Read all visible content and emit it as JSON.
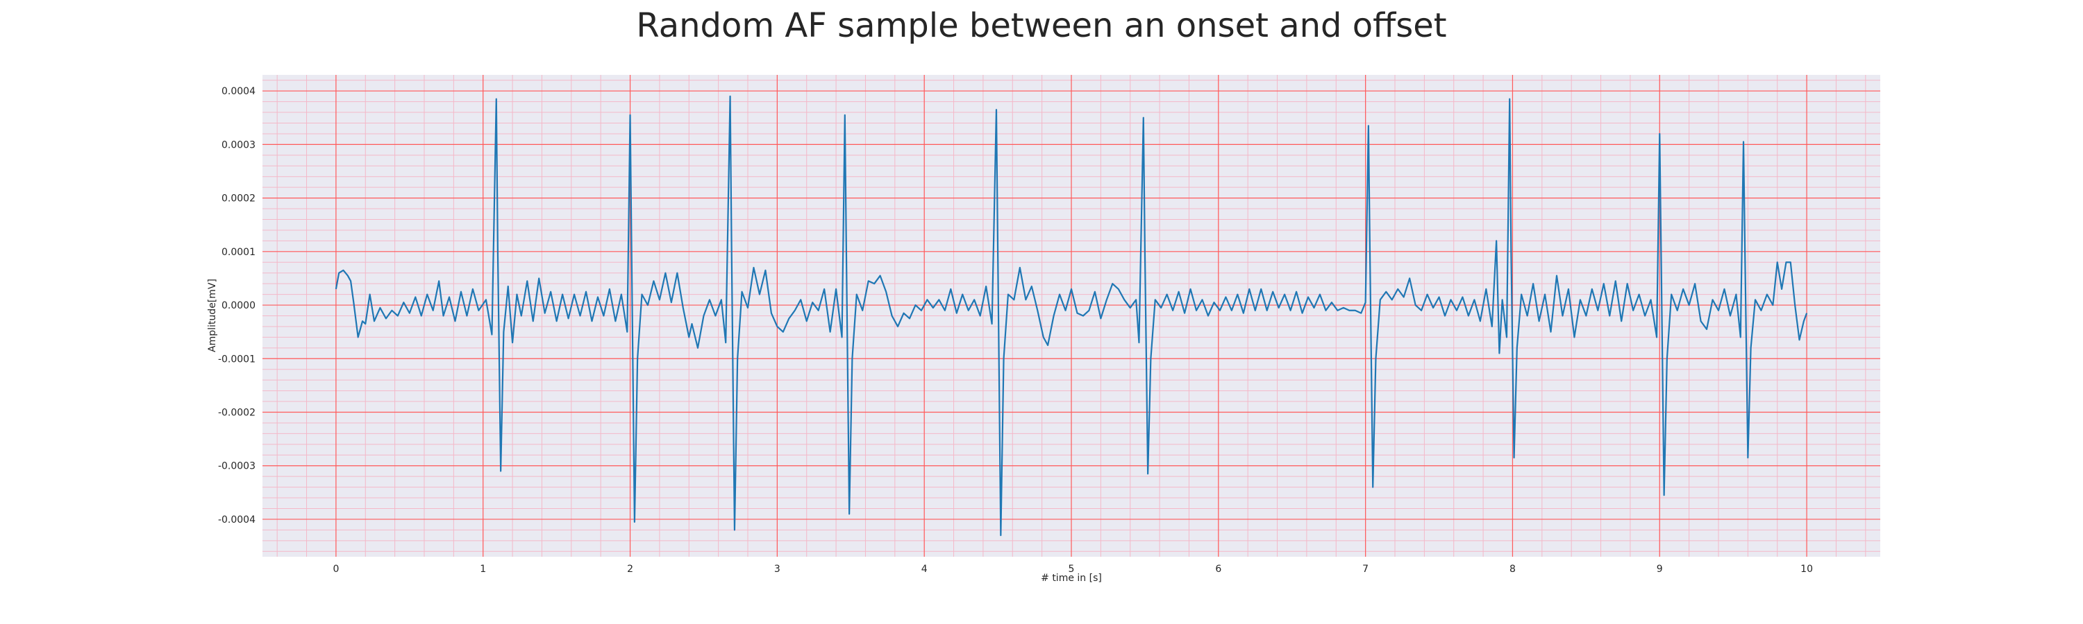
{
  "chart_data": {
    "type": "line",
    "title": "Random AF sample between an onset and offset",
    "xlabel": "# time in [s]",
    "ylabel": "Amplitude[mV]",
    "xlim": [
      -0.5,
      10.5
    ],
    "ylim": [
      -0.00047,
      0.00043
    ],
    "x_ticks": [
      0,
      1,
      2,
      3,
      4,
      5,
      6,
      7,
      8,
      9,
      10
    ],
    "x_tick_labels": [
      "0",
      "1",
      "2",
      "3",
      "4",
      "5",
      "6",
      "7",
      "8",
      "9",
      "10"
    ],
    "y_ticks": [
      -0.0004,
      -0.0003,
      -0.0002,
      -0.0001,
      0,
      0.0001,
      0.0002,
      0.0003,
      0.0004
    ],
    "y_tick_labels": [
      "-0.0004",
      "-0.0003",
      "-0.0002",
      "-0.0001",
      "0.0000",
      "0.0001",
      "0.0002",
      "0.0003",
      "0.0004"
    ],
    "grid": {
      "major": true,
      "minor": true
    },
    "colors": {
      "plot_background": "#eaeaf2",
      "major_grid": "#ff5b5b",
      "minor_grid": "#f4b8c8",
      "line": "#1f77b4"
    },
    "series": [
      {
        "points": [
          [
            0.0,
            3e-05
          ],
          [
            0.02,
            6e-05
          ],
          [
            0.05,
            6.5e-05
          ],
          [
            0.08,
            5.5e-05
          ],
          [
            0.1,
            4.5e-05
          ],
          [
            0.12,
            5e-06
          ],
          [
            0.15,
            -6e-05
          ],
          [
            0.18,
            -3e-05
          ],
          [
            0.2,
            -3.5e-05
          ],
          [
            0.23,
            2e-05
          ],
          [
            0.26,
            -3e-05
          ],
          [
            0.3,
            -5e-06
          ],
          [
            0.34,
            -2.5e-05
          ],
          [
            0.38,
            -1e-05
          ],
          [
            0.42,
            -2e-05
          ],
          [
            0.46,
            5e-06
          ],
          [
            0.5,
            -1.5e-05
          ],
          [
            0.54,
            1.5e-05
          ],
          [
            0.58,
            -2e-05
          ],
          [
            0.62,
            2e-05
          ],
          [
            0.66,
            -1e-05
          ],
          [
            0.7,
            4.5e-05
          ],
          [
            0.73,
            -2e-05
          ],
          [
            0.77,
            1.5e-05
          ],
          [
            0.81,
            -3e-05
          ],
          [
            0.85,
            2.5e-05
          ],
          [
            0.89,
            -2e-05
          ],
          [
            0.93,
            3e-05
          ],
          [
            0.97,
            -1e-05
          ],
          [
            1.02,
            1e-05
          ],
          [
            1.06,
            -5.5e-05
          ],
          [
            1.09,
            0.000385
          ],
          [
            1.1,
            0.0001
          ],
          [
            1.12,
            -0.00031
          ],
          [
            1.14,
            -5e-05
          ],
          [
            1.17,
            3.5e-05
          ],
          [
            1.2,
            -7e-05
          ],
          [
            1.23,
            2e-05
          ],
          [
            1.26,
            -2e-05
          ],
          [
            1.3,
            4.5e-05
          ],
          [
            1.34,
            -3e-05
          ],
          [
            1.38,
            5e-05
          ],
          [
            1.42,
            -1.5e-05
          ],
          [
            1.46,
            2.5e-05
          ],
          [
            1.5,
            -3e-05
          ],
          [
            1.54,
            2e-05
          ],
          [
            1.58,
            -2.5e-05
          ],
          [
            1.62,
            2e-05
          ],
          [
            1.66,
            -2e-05
          ],
          [
            1.7,
            2.5e-05
          ],
          [
            1.74,
            -3e-05
          ],
          [
            1.78,
            1.5e-05
          ],
          [
            1.82,
            -2e-05
          ],
          [
            1.86,
            3e-05
          ],
          [
            1.9,
            -3e-05
          ],
          [
            1.94,
            2e-05
          ],
          [
            1.98,
            -5e-05
          ],
          [
            2.0,
            0.000355
          ],
          [
            2.01,
            0.0001
          ],
          [
            2.03,
            -0.000405
          ],
          [
            2.05,
            -0.0001
          ],
          [
            2.08,
            2e-05
          ],
          [
            2.12,
            0.0
          ],
          [
            2.16,
            4.5e-05
          ],
          [
            2.2,
            1e-05
          ],
          [
            2.24,
            6e-05
          ],
          [
            2.28,
            5e-06
          ],
          [
            2.32,
            6e-05
          ],
          [
            2.36,
            -5e-06
          ],
          [
            2.4,
            -6e-05
          ],
          [
            2.42,
            -3.5e-05
          ],
          [
            2.46,
            -8e-05
          ],
          [
            2.5,
            -2e-05
          ],
          [
            2.54,
            1e-05
          ],
          [
            2.58,
            -2e-05
          ],
          [
            2.62,
            1e-05
          ],
          [
            2.65,
            -7e-05
          ],
          [
            2.68,
            0.00039
          ],
          [
            2.69,
            0.0001
          ],
          [
            2.71,
            -0.00042
          ],
          [
            2.73,
            -0.0001
          ],
          [
            2.76,
            2.5e-05
          ],
          [
            2.8,
            -5e-06
          ],
          [
            2.84,
            7e-05
          ],
          [
            2.88,
            2e-05
          ],
          [
            2.92,
            6.5e-05
          ],
          [
            2.96,
            -1.5e-05
          ],
          [
            3.0,
            -4e-05
          ],
          [
            3.04,
            -5e-05
          ],
          [
            3.08,
            -2.5e-05
          ],
          [
            3.12,
            -1e-05
          ],
          [
            3.16,
            1e-05
          ],
          [
            3.2,
            -3e-05
          ],
          [
            3.24,
            5e-06
          ],
          [
            3.28,
            -1e-05
          ],
          [
            3.32,
            3e-05
          ],
          [
            3.36,
            -5e-05
          ],
          [
            3.4,
            3e-05
          ],
          [
            3.44,
            -6e-05
          ],
          [
            3.46,
            0.000355
          ],
          [
            3.47,
            0.0001
          ],
          [
            3.49,
            -0.00039
          ],
          [
            3.51,
            -0.0001
          ],
          [
            3.54,
            2e-05
          ],
          [
            3.58,
            -1e-05
          ],
          [
            3.62,
            4.5e-05
          ],
          [
            3.66,
            4e-05
          ],
          [
            3.7,
            5.5e-05
          ],
          [
            3.74,
            2.5e-05
          ],
          [
            3.78,
            -2e-05
          ],
          [
            3.82,
            -4e-05
          ],
          [
            3.86,
            -1.5e-05
          ],
          [
            3.9,
            -2.5e-05
          ],
          [
            3.94,
            0.0
          ],
          [
            3.98,
            -1e-05
          ],
          [
            4.02,
            1e-05
          ],
          [
            4.06,
            -5e-06
          ],
          [
            4.1,
            1e-05
          ],
          [
            4.14,
            -1e-05
          ],
          [
            4.18,
            3e-05
          ],
          [
            4.22,
            -1.5e-05
          ],
          [
            4.26,
            2e-05
          ],
          [
            4.3,
            -1e-05
          ],
          [
            4.34,
            1e-05
          ],
          [
            4.38,
            -2e-05
          ],
          [
            4.42,
            3.5e-05
          ],
          [
            4.46,
            -3.5e-05
          ],
          [
            4.49,
            0.000365
          ],
          [
            4.5,
            0.0001
          ],
          [
            4.52,
            -0.00043
          ],
          [
            4.54,
            -0.0001
          ],
          [
            4.57,
            2e-05
          ],
          [
            4.61,
            1e-05
          ],
          [
            4.65,
            7e-05
          ],
          [
            4.69,
            1e-05
          ],
          [
            4.73,
            3.5e-05
          ],
          [
            4.77,
            -1e-05
          ],
          [
            4.81,
            -6e-05
          ],
          [
            4.84,
            -7.5e-05
          ],
          [
            4.88,
            -2e-05
          ],
          [
            4.92,
            2e-05
          ],
          [
            4.96,
            -1e-05
          ],
          [
            5.0,
            3e-05
          ],
          [
            5.04,
            -1.5e-05
          ],
          [
            5.08,
            -2e-05
          ],
          [
            5.12,
            -1e-05
          ],
          [
            5.16,
            2.5e-05
          ],
          [
            5.2,
            -2.5e-05
          ],
          [
            5.24,
            1e-05
          ],
          [
            5.28,
            4e-05
          ],
          [
            5.32,
            3e-05
          ],
          [
            5.36,
            1e-05
          ],
          [
            5.4,
            -5e-06
          ],
          [
            5.44,
            1e-05
          ],
          [
            5.46,
            -7e-05
          ],
          [
            5.49,
            0.00035
          ],
          [
            5.5,
            0.0001
          ],
          [
            5.52,
            -0.000315
          ],
          [
            5.54,
            -0.0001
          ],
          [
            5.57,
            1e-05
          ],
          [
            5.61,
            -5e-06
          ],
          [
            5.65,
            2e-05
          ],
          [
            5.69,
            -1e-05
          ],
          [
            5.73,
            2.5e-05
          ],
          [
            5.77,
            -1.5e-05
          ],
          [
            5.81,
            3e-05
          ],
          [
            5.85,
            -1e-05
          ],
          [
            5.89,
            1e-05
          ],
          [
            5.93,
            -2e-05
          ],
          [
            5.97,
            5e-06
          ],
          [
            6.01,
            -1e-05
          ],
          [
            6.05,
            1.5e-05
          ],
          [
            6.09,
            -1e-05
          ],
          [
            6.13,
            2e-05
          ],
          [
            6.17,
            -1.5e-05
          ],
          [
            6.21,
            3e-05
          ],
          [
            6.25,
            -1e-05
          ],
          [
            6.29,
            3e-05
          ],
          [
            6.33,
            -1e-05
          ],
          [
            6.37,
            2.5e-05
          ],
          [
            6.41,
            -5e-06
          ],
          [
            6.45,
            2e-05
          ],
          [
            6.49,
            -1e-05
          ],
          [
            6.53,
            2.5e-05
          ],
          [
            6.57,
            -1.5e-05
          ],
          [
            6.61,
            1.5e-05
          ],
          [
            6.65,
            -5e-06
          ],
          [
            6.69,
            2e-05
          ],
          [
            6.73,
            -1e-05
          ],
          [
            6.77,
            5e-06
          ],
          [
            6.81,
            -1e-05
          ],
          [
            6.85,
            -5e-06
          ],
          [
            6.89,
            -1e-05
          ],
          [
            6.93,
            -1e-05
          ],
          [
            6.97,
            -1.5e-05
          ],
          [
            7.0,
            5e-06
          ],
          [
            7.02,
            0.000335
          ],
          [
            7.03,
            0.0001
          ],
          [
            7.05,
            -0.00034
          ],
          [
            7.07,
            -0.0001
          ],
          [
            7.1,
            1e-05
          ],
          [
            7.14,
            2.5e-05
          ],
          [
            7.18,
            1e-05
          ],
          [
            7.22,
            3e-05
          ],
          [
            7.26,
            1.5e-05
          ],
          [
            7.3,
            5e-05
          ],
          [
            7.34,
            0.0
          ],
          [
            7.38,
            -1e-05
          ],
          [
            7.42,
            2e-05
          ],
          [
            7.46,
            -5e-06
          ],
          [
            7.5,
            1.5e-05
          ],
          [
            7.54,
            -2e-05
          ],
          [
            7.58,
            1e-05
          ],
          [
            7.62,
            -1e-05
          ],
          [
            7.66,
            1.5e-05
          ],
          [
            7.7,
            -2e-05
          ],
          [
            7.74,
            1e-05
          ],
          [
            7.78,
            -3e-05
          ],
          [
            7.82,
            3e-05
          ],
          [
            7.86,
            -4e-05
          ],
          [
            7.89,
            0.00012
          ],
          [
            7.91,
            -9e-05
          ],
          [
            7.93,
            1e-05
          ],
          [
            7.96,
            -6e-05
          ],
          [
            7.98,
            0.000385
          ],
          [
            7.99,
            0.0001
          ],
          [
            8.01,
            -0.000285
          ],
          [
            8.03,
            -8e-05
          ],
          [
            8.06,
            2e-05
          ],
          [
            8.1,
            -2e-05
          ],
          [
            8.14,
            4e-05
          ],
          [
            8.18,
            -3e-05
          ],
          [
            8.22,
            2e-05
          ],
          [
            8.26,
            -5e-05
          ],
          [
            8.3,
            5.5e-05
          ],
          [
            8.34,
            -2e-05
          ],
          [
            8.38,
            3e-05
          ],
          [
            8.42,
            -6e-05
          ],
          [
            8.46,
            1e-05
          ],
          [
            8.5,
            -2e-05
          ],
          [
            8.54,
            3e-05
          ],
          [
            8.58,
            -1e-05
          ],
          [
            8.62,
            4e-05
          ],
          [
            8.66,
            -2e-05
          ],
          [
            8.7,
            4.5e-05
          ],
          [
            8.74,
            -3e-05
          ],
          [
            8.78,
            4e-05
          ],
          [
            8.82,
            -1e-05
          ],
          [
            8.86,
            2e-05
          ],
          [
            8.9,
            -2e-05
          ],
          [
            8.94,
            1e-05
          ],
          [
            8.98,
            -6e-05
          ],
          [
            9.0,
            0.00032
          ],
          [
            9.01,
            0.0001
          ],
          [
            9.03,
            -0.000355
          ],
          [
            9.05,
            -0.0001
          ],
          [
            9.08,
            2e-05
          ],
          [
            9.12,
            -1e-05
          ],
          [
            9.16,
            3e-05
          ],
          [
            9.2,
            0.0
          ],
          [
            9.24,
            4e-05
          ],
          [
            9.28,
            -3e-05
          ],
          [
            9.32,
            -4.5e-05
          ],
          [
            9.36,
            1e-05
          ],
          [
            9.4,
            -1e-05
          ],
          [
            9.44,
            3e-05
          ],
          [
            9.48,
            -2e-05
          ],
          [
            9.52,
            2e-05
          ],
          [
            9.55,
            -6e-05
          ],
          [
            9.57,
            0.000305
          ],
          [
            9.58,
            0.0001
          ],
          [
            9.6,
            -0.000285
          ],
          [
            9.62,
            -8e-05
          ],
          [
            9.65,
            1e-05
          ],
          [
            9.69,
            -1e-05
          ],
          [
            9.73,
            2e-05
          ],
          [
            9.77,
            0.0
          ],
          [
            9.8,
            8e-05
          ],
          [
            9.83,
            3e-05
          ],
          [
            9.86,
            8e-05
          ],
          [
            9.89,
            8e-05
          ],
          [
            9.92,
            0.0
          ],
          [
            9.95,
            -6.5e-05
          ],
          [
            9.98,
            -3e-05
          ],
          [
            10.0,
            -1.5e-05
          ]
        ]
      }
    ]
  }
}
